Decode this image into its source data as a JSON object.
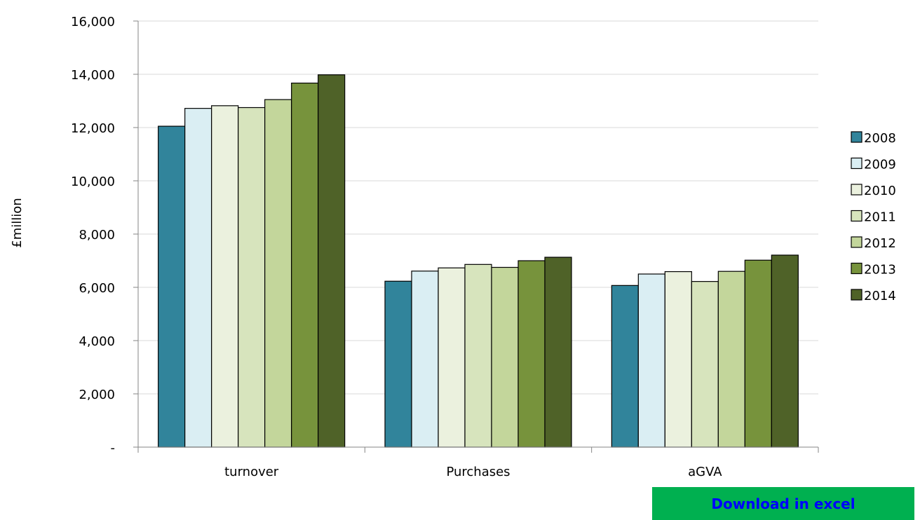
{
  "chart_data": {
    "type": "bar",
    "title": "",
    "xlabel": "",
    "ylabel": "£million",
    "ylim": [
      0,
      16000
    ],
    "yticks": [
      0,
      2000,
      4000,
      6000,
      8000,
      10000,
      12000,
      14000,
      16000
    ],
    "ytick_labels": [
      "-",
      "2,000",
      "4,000",
      "6,000",
      "8,000",
      "10,000",
      "12,000",
      "14,000",
      "16,000"
    ],
    "grid": true,
    "legend_position": "right",
    "categories": [
      "turnover",
      "Purchases",
      "aGVA"
    ],
    "series": [
      {
        "name": "2008",
        "color": "#31849b",
        "values": [
          12050,
          6230,
          6070
        ]
      },
      {
        "name": "2009",
        "color": "#daeef3",
        "values": [
          12720,
          6610,
          6500
        ]
      },
      {
        "name": "2010",
        "color": "#ebf1de",
        "values": [
          12820,
          6730,
          6590
        ]
      },
      {
        "name": "2011",
        "color": "#d7e4bd",
        "values": [
          12750,
          6860,
          6220
        ]
      },
      {
        "name": "2012",
        "color": "#c3d69b",
        "values": [
          13050,
          6750,
          6600
        ]
      },
      {
        "name": "2013",
        "color": "#77933c",
        "values": [
          13670,
          7000,
          7020
        ]
      },
      {
        "name": "2014",
        "color": "#4f6228",
        "values": [
          13980,
          7130,
          7210
        ]
      }
    ]
  },
  "download": {
    "label": "Download in excel",
    "background": "#00b050",
    "text_color": "#0000ff"
  }
}
